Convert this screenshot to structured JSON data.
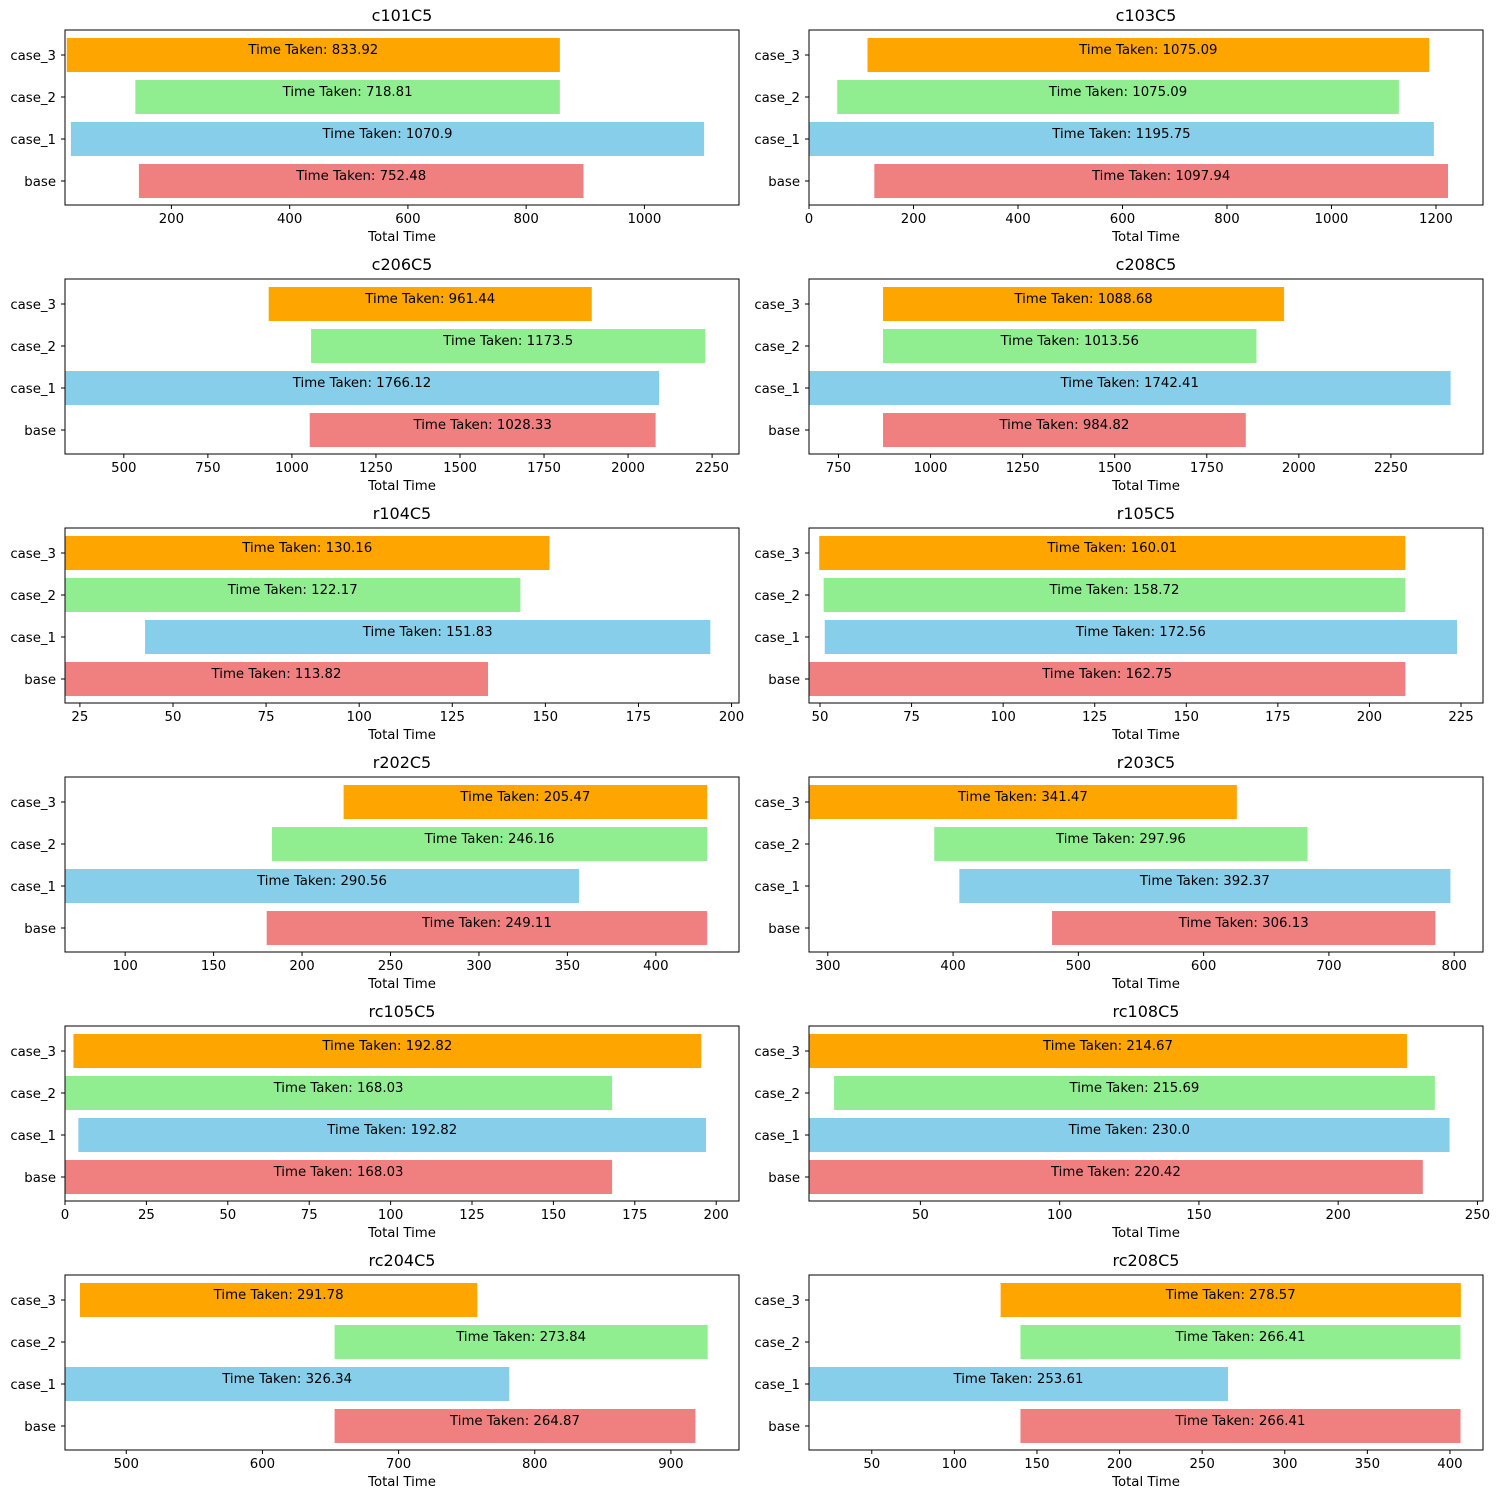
{
  "chart_data": [
    {
      "type": "bar",
      "orientation": "horizontal",
      "title": "c101C5",
      "xlabel": "Total Time",
      "ylabel": "",
      "categories": [
        "base",
        "case_1",
        "case_2",
        "case_3"
      ],
      "xlim": [
        20,
        1160
      ],
      "xticks": [
        200,
        400,
        600,
        800,
        1000
      ],
      "bars": [
        {
          "start": 145,
          "end": 897,
          "label": "Time Taken: 752.48",
          "color": "#F08080"
        },
        {
          "start": 30,
          "end": 1101,
          "label": "Time Taken: 1070.9",
          "color": "#87CEEB"
        },
        {
          "start": 139,
          "end": 857,
          "label": "Time Taken: 718.81",
          "color": "#90EE90"
        },
        {
          "start": 23,
          "end": 857,
          "label": "Time Taken: 833.92",
          "color": "#FFA500"
        }
      ]
    },
    {
      "type": "bar",
      "orientation": "horizontal",
      "title": "c103C5",
      "xlabel": "Total Time",
      "ylabel": "",
      "categories": [
        "base",
        "case_1",
        "case_2",
        "case_3"
      ],
      "xlim": [
        0,
        1290
      ],
      "xticks": [
        0,
        200,
        400,
        600,
        800,
        1000,
        1200
      ],
      "bars": [
        {
          "start": 125,
          "end": 1223,
          "label": "Time Taken: 1097.94",
          "color": "#F08080"
        },
        {
          "start": 0,
          "end": 1196,
          "label": "Time Taken: 1195.75",
          "color": "#87CEEB"
        },
        {
          "start": 54,
          "end": 1129,
          "label": "Time Taken: 1075.09",
          "color": "#90EE90"
        },
        {
          "start": 112,
          "end": 1187,
          "label": "Time Taken: 1075.09",
          "color": "#FFA500"
        }
      ]
    },
    {
      "type": "bar",
      "orientation": "horizontal",
      "title": "c206C5",
      "xlabel": "Total Time",
      "ylabel": "",
      "categories": [
        "base",
        "case_1",
        "case_2",
        "case_3"
      ],
      "xlim": [
        325,
        2330
      ],
      "xticks": [
        500,
        750,
        1000,
        1250,
        1500,
        1750,
        2000,
        2250
      ],
      "bars": [
        {
          "start": 1053,
          "end": 2082,
          "label": "Time Taken: 1028.33",
          "color": "#F08080"
        },
        {
          "start": 325,
          "end": 2092,
          "label": "Time Taken: 1766.12",
          "color": "#87CEEB"
        },
        {
          "start": 1057,
          "end": 2230,
          "label": "Time Taken: 1173.5",
          "color": "#90EE90"
        },
        {
          "start": 931,
          "end": 1892,
          "label": "Time Taken: 961.44",
          "color": "#FFA500"
        }
      ]
    },
    {
      "type": "bar",
      "orientation": "horizontal",
      "title": "c208C5",
      "xlabel": "Total Time",
      "ylabel": "",
      "categories": [
        "base",
        "case_1",
        "case_2",
        "case_3"
      ],
      "xlim": [
        670,
        2500
      ],
      "xticks": [
        750,
        1000,
        1250,
        1500,
        1750,
        2000,
        2250
      ],
      "bars": [
        {
          "start": 871,
          "end": 1856,
          "label": "Time Taken: 984.82",
          "color": "#F08080"
        },
        {
          "start": 670,
          "end": 2412,
          "label": "Time Taken: 1742.41",
          "color": "#87CEEB"
        },
        {
          "start": 871,
          "end": 1885,
          "label": "Time Taken: 1013.56",
          "color": "#90EE90"
        },
        {
          "start": 871,
          "end": 1960,
          "label": "Time Taken: 1088.68",
          "color": "#FFA500"
        }
      ]
    },
    {
      "type": "bar",
      "orientation": "horizontal",
      "title": "r104C5",
      "xlabel": "Total Time",
      "ylabel": "",
      "categories": [
        "base",
        "case_1",
        "case_2",
        "case_3"
      ],
      "xlim": [
        21,
        202
      ],
      "xticks": [
        25,
        50,
        75,
        100,
        125,
        150,
        175,
        200
      ],
      "bars": [
        {
          "start": 21,
          "end": 134.6,
          "label": "Time Taken: 113.82",
          "color": "#F08080"
        },
        {
          "start": 42.5,
          "end": 194.3,
          "label": "Time Taken: 151.83",
          "color": "#87CEEB"
        },
        {
          "start": 21,
          "end": 143.3,
          "label": "Time Taken: 122.17",
          "color": "#90EE90"
        },
        {
          "start": 21,
          "end": 151.1,
          "label": "Time Taken: 130.16",
          "color": "#FFA500"
        }
      ]
    },
    {
      "type": "bar",
      "orientation": "horizontal",
      "title": "r105C5",
      "xlabel": "Total Time",
      "ylabel": "",
      "categories": [
        "base",
        "case_1",
        "case_2",
        "case_3"
      ],
      "xlim": [
        47,
        231
      ],
      "xticks": [
        50,
        75,
        100,
        125,
        150,
        175,
        200,
        225
      ],
      "bars": [
        {
          "start": 47,
          "end": 209.8,
          "label": "Time Taken: 162.75",
          "color": "#F08080"
        },
        {
          "start": 51.3,
          "end": 223.9,
          "label": "Time Taken: 172.56",
          "color": "#87CEEB"
        },
        {
          "start": 51,
          "end": 209.8,
          "label": "Time Taken: 158.72",
          "color": "#90EE90"
        },
        {
          "start": 49.8,
          "end": 209.8,
          "label": "Time Taken: 160.01",
          "color": "#FFA500"
        }
      ]
    },
    {
      "type": "bar",
      "orientation": "horizontal",
      "title": "r202C5",
      "xlabel": "Total Time",
      "ylabel": "",
      "categories": [
        "base",
        "case_1",
        "case_2",
        "case_3"
      ],
      "xlim": [
        66,
        447
      ],
      "xticks": [
        100,
        150,
        200,
        250,
        300,
        350,
        400
      ],
      "bars": [
        {
          "start": 180,
          "end": 429,
          "label": "Time Taken: 249.11",
          "color": "#F08080"
        },
        {
          "start": 66,
          "end": 356.6,
          "label": "Time Taken: 290.56",
          "color": "#87CEEB"
        },
        {
          "start": 183,
          "end": 429,
          "label": "Time Taken: 246.16",
          "color": "#90EE90"
        },
        {
          "start": 223.5,
          "end": 429,
          "label": "Time Taken: 205.47",
          "color": "#FFA500"
        }
      ]
    },
    {
      "type": "bar",
      "orientation": "horizontal",
      "title": "r203C5",
      "xlabel": "Total Time",
      "ylabel": "",
      "categories": [
        "base",
        "case_1",
        "case_2",
        "case_3"
      ],
      "xlim": [
        285,
        823
      ],
      "xticks": [
        300,
        400,
        500,
        600,
        700,
        800
      ],
      "bars": [
        {
          "start": 479,
          "end": 785,
          "label": "Time Taken: 306.13",
          "color": "#F08080"
        },
        {
          "start": 405,
          "end": 797,
          "label": "Time Taken: 392.37",
          "color": "#87CEEB"
        },
        {
          "start": 385,
          "end": 683,
          "label": "Time Taken: 297.96",
          "color": "#90EE90"
        },
        {
          "start": 285,
          "end": 626.5,
          "label": "Time Taken: 341.47",
          "color": "#FFA500"
        }
      ]
    },
    {
      "type": "bar",
      "orientation": "horizontal",
      "title": "rc105C5",
      "xlabel": "Total Time",
      "ylabel": "",
      "categories": [
        "base",
        "case_1",
        "case_2",
        "case_3"
      ],
      "xlim": [
        0,
        207
      ],
      "xticks": [
        0,
        25,
        50,
        75,
        100,
        125,
        150,
        175,
        200
      ],
      "bars": [
        {
          "start": 0,
          "end": 168.03,
          "label": "Time Taken: 168.03",
          "color": "#F08080"
        },
        {
          "start": 4.1,
          "end": 196.9,
          "label": "Time Taken: 192.82",
          "color": "#87CEEB"
        },
        {
          "start": 0,
          "end": 168.03,
          "label": "Time Taken: 168.03",
          "color": "#90EE90"
        },
        {
          "start": 2.6,
          "end": 195.4,
          "label": "Time Taken: 192.82",
          "color": "#FFA500"
        }
      ]
    },
    {
      "type": "bar",
      "orientation": "horizontal",
      "title": "rc108C5",
      "xlabel": "Total Time",
      "ylabel": "",
      "categories": [
        "base",
        "case_1",
        "case_2",
        "case_3"
      ],
      "xlim": [
        10,
        252
      ],
      "xticks": [
        50,
        100,
        150,
        200,
        250
      ],
      "bars": [
        {
          "start": 10,
          "end": 230.4,
          "label": "Time Taken: 220.42",
          "color": "#F08080"
        },
        {
          "start": 10,
          "end": 240,
          "label": "Time Taken: 230.0",
          "color": "#87CEEB"
        },
        {
          "start": 19,
          "end": 234.7,
          "label": "Time Taken: 215.69",
          "color": "#90EE90"
        },
        {
          "start": 10,
          "end": 224.7,
          "label": "Time Taken: 214.67",
          "color": "#FFA500"
        }
      ]
    },
    {
      "type": "bar",
      "orientation": "horizontal",
      "title": "rc204C5",
      "xlabel": "Total Time",
      "ylabel": "",
      "categories": [
        "base",
        "case_1",
        "case_2",
        "case_3"
      ],
      "xlim": [
        455,
        950
      ],
      "xticks": [
        500,
        600,
        700,
        800,
        900
      ],
      "bars": [
        {
          "start": 653,
          "end": 918,
          "label": "Time Taken: 264.87",
          "color": "#F08080"
        },
        {
          "start": 455,
          "end": 781.3,
          "label": "Time Taken: 326.34",
          "color": "#87CEEB"
        },
        {
          "start": 653,
          "end": 927,
          "label": "Time Taken: 273.84",
          "color": "#90EE90"
        },
        {
          "start": 466,
          "end": 757.8,
          "label": "Time Taken: 291.78",
          "color": "#FFA500"
        }
      ]
    },
    {
      "type": "bar",
      "orientation": "horizontal",
      "title": "rc208C5",
      "xlabel": "Total Time",
      "ylabel": "",
      "categories": [
        "base",
        "case_1",
        "case_2",
        "case_3"
      ],
      "xlim": [
        12,
        420
      ],
      "xticks": [
        50,
        100,
        150,
        200,
        250,
        300,
        350,
        400
      ],
      "bars": [
        {
          "start": 140,
          "end": 406.4,
          "label": "Time Taken: 266.41",
          "color": "#F08080"
        },
        {
          "start": 12,
          "end": 265.6,
          "label": "Time Taken: 253.61",
          "color": "#87CEEB"
        },
        {
          "start": 140,
          "end": 406.4,
          "label": "Time Taken: 266.41",
          "color": "#90EE90"
        },
        {
          "start": 128,
          "end": 406.6,
          "label": "Time Taken: 278.57",
          "color": "#FFA500"
        }
      ]
    }
  ]
}
